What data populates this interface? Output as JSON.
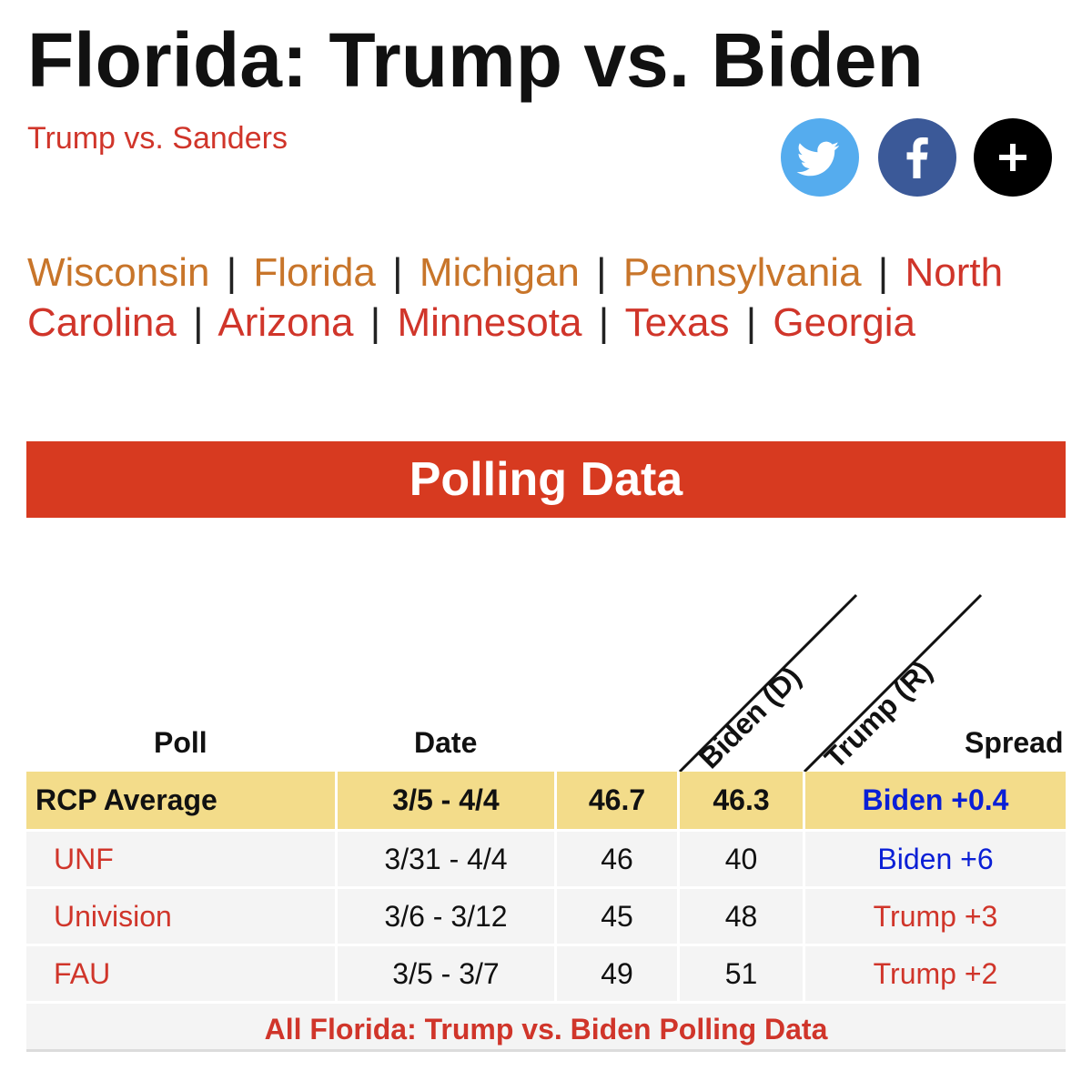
{
  "title": "Florida: Trump vs. Biden",
  "alt_matchup_link": "Trump vs. Sanders",
  "share": {
    "colors": {
      "twitter": "#55acee",
      "facebook": "#3b5998",
      "more": "#000000"
    },
    "icons": [
      "twitter-bird-icon",
      "facebook-f-icon",
      "plus-icon"
    ]
  },
  "state_nav": {
    "separator": "|",
    "items": [
      {
        "label": "Wisconsin",
        "color": "#c8752a"
      },
      {
        "label": "Florida",
        "color": "#c8752a"
      },
      {
        "label": "Michigan",
        "color": "#c8752a"
      },
      {
        "label": "Pennsylvania",
        "color": "#c8752a"
      },
      {
        "label": "North Carolina",
        "color": "#d0352a"
      },
      {
        "label": "Arizona",
        "color": "#d0352a"
      },
      {
        "label": "Minnesota",
        "color": "#d0352a"
      },
      {
        "label": "Texas",
        "color": "#d0352a"
      },
      {
        "label": "Georgia",
        "color": "#d0352a"
      }
    ]
  },
  "section_title": "Polling Data",
  "table": {
    "headers": {
      "poll": "Poll",
      "date": "Date",
      "biden": "Biden (D)",
      "trump": "Trump (R)",
      "spread": "Spread"
    },
    "average": {
      "poll": "RCP Average",
      "date": "3/5 - 4/4",
      "biden": "46.7",
      "trump": "46.3",
      "spread": "Biden +0.4"
    },
    "rows": [
      {
        "poll": "UNF",
        "date": "3/31 - 4/4",
        "biden": "46",
        "trump": "40",
        "spread": "Biden +6"
      },
      {
        "poll": "Univision",
        "date": "3/6 - 3/12",
        "biden": "45",
        "trump": "48",
        "spread": "Trump +3"
      },
      {
        "poll": "FAU",
        "date": "3/5 - 3/7",
        "biden": "49",
        "trump": "51",
        "spread": "Trump +2"
      }
    ],
    "footer_link": "All Florida: Trump vs. Biden Polling Data"
  },
  "colors": {
    "accent_red": "#d73a20",
    "link_red": "#d0352a",
    "biden_blue": "#0a1fd6",
    "average_bg": "#f3dc8a"
  }
}
